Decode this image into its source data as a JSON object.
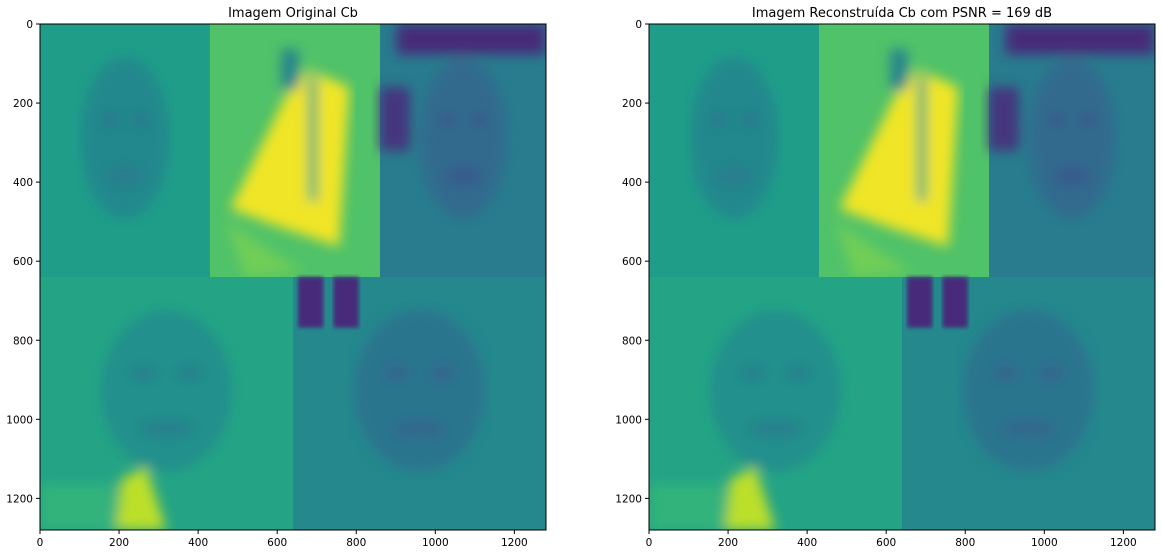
{
  "chart_data": [
    {
      "type": "heatmap",
      "title": "Imagem Original Cb",
      "colormap": "viridis",
      "xlim": [
        0,
        1280
      ],
      "ylim": [
        1280,
        0
      ],
      "xticks": [
        0,
        200,
        400,
        600,
        800,
        1000,
        1200
      ],
      "yticks": [
        0,
        200,
        400,
        600,
        800,
        1000,
        1200
      ],
      "image_tiles": [
        {
          "label": "face-top-left",
          "x": [
            0,
            430
          ],
          "y": [
            0,
            640
          ],
          "level": 0.55
        },
        {
          "label": "flag-top-middle",
          "x": [
            430,
            860
          ],
          "y": [
            0,
            640
          ],
          "level": 0.72
        },
        {
          "label": "face-top-right",
          "x": [
            860,
            1280
          ],
          "y": [
            0,
            640
          ],
          "level": 0.42
        },
        {
          "label": "face-bottom-left",
          "x": [
            0,
            640
          ],
          "y": [
            640,
            1280
          ],
          "level": 0.58
        },
        {
          "label": "face-bottom-right",
          "x": [
            640,
            1280
          ],
          "y": [
            640,
            1280
          ],
          "level": 0.47
        }
      ]
    },
    {
      "type": "heatmap",
      "title": "Imagem Reconstruída Cb com PSNR = 169 dB",
      "colormap": "viridis",
      "xlim": [
        0,
        1280
      ],
      "ylim": [
        1280,
        0
      ],
      "xticks": [
        0,
        200,
        400,
        600,
        800,
        1000,
        1200
      ],
      "yticks": [
        0,
        200,
        400,
        600,
        800,
        1000,
        1200
      ],
      "image_tiles": [
        {
          "label": "face-top-left",
          "x": [
            0,
            430
          ],
          "y": [
            0,
            640
          ],
          "level": 0.55
        },
        {
          "label": "flag-top-middle",
          "x": [
            430,
            860
          ],
          "y": [
            0,
            640
          ],
          "level": 0.72
        },
        {
          "label": "face-top-right",
          "x": [
            860,
            1280
          ],
          "y": [
            0,
            640
          ],
          "level": 0.42
        },
        {
          "label": "face-bottom-left",
          "x": [
            0,
            640
          ],
          "y": [
            640,
            1280
          ],
          "level": 0.58
        },
        {
          "label": "face-bottom-right",
          "x": [
            640,
            1280
          ],
          "y": [
            640,
            1280
          ],
          "level": 0.47
        }
      ]
    }
  ]
}
